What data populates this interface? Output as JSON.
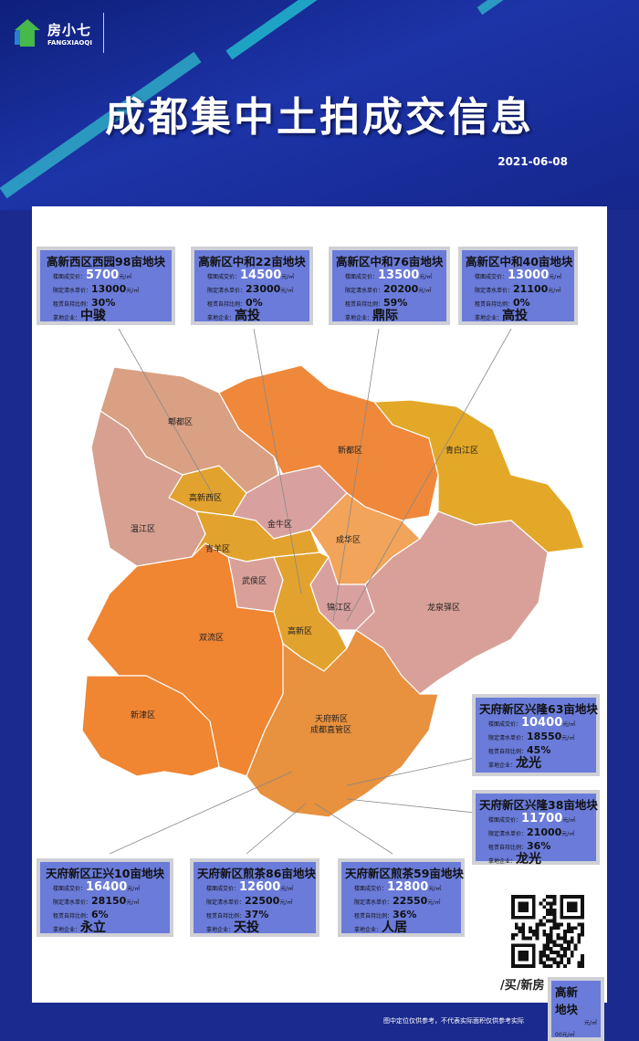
{
  "logo": {
    "name_cn": "房小七",
    "name_en": "FANGXIAOQI"
  },
  "title": "成都集中土拍成交信息",
  "date": "2021-06-08",
  "field_labels": {
    "price": "楼面成交价：",
    "limit": "限定清水单价：",
    "ratio": "租赁自持比例：",
    "company": "拿地企业："
  },
  "unit": "元/㎡",
  "parcels": [
    {
      "name": "高新西区西园98亩地块",
      "price": "5700",
      "limit": "13000",
      "ratio": "30%",
      "company": "中骏"
    },
    {
      "name": "高新区中和22亩地块",
      "price": "14500",
      "limit": "23000",
      "ratio": "0%",
      "company": "高投"
    },
    {
      "name": "高新区中和76亩地块",
      "price": "13500",
      "limit": "20200",
      "ratio": "59%",
      "company": "鼎际"
    },
    {
      "name": "高新区中和40亩地块",
      "price": "13000",
      "limit": "21100",
      "ratio": "0%",
      "company": "高投"
    },
    {
      "name": "天府新区兴隆63亩地块",
      "price": "10400",
      "limit": "18550",
      "ratio": "45%",
      "company": "龙光"
    },
    {
      "name": "天府新区兴隆38亩地块",
      "price": "11700",
      "limit": "21000",
      "ratio": "36%",
      "company": "龙光"
    },
    {
      "name": "天府新区正兴10亩地块",
      "price": "16400",
      "limit": "28150",
      "ratio": "6%",
      "company": "永立"
    },
    {
      "name": "天府新区煎茶86亩地块",
      "price": "12600",
      "limit": "22500",
      "ratio": "37%",
      "company": "天投"
    },
    {
      "name": "天府新区煎茶59亩地块",
      "price": "12800",
      "limit": "22550",
      "ratio": "36%",
      "company": "人居"
    }
  ],
  "partial_box": {
    "title": "高新",
    "title2": "地块",
    "l1": "元/㎡",
    "l2": "00元/㎡"
  },
  "districts": {
    "pidu": "郫都区",
    "xindu": "新都区",
    "qingbaijiang": "青白江区",
    "gaoxinxi": "高新西区",
    "wenjiang": "温江区",
    "jinniu": "金牛区",
    "chenghua": "成华区",
    "qingyang": "青羊区",
    "wuhou": "武侯区",
    "jinjiang": "锦江区",
    "gaoxin": "高新区",
    "longquanyi": "龙泉驿区",
    "shuangliu": "双流区",
    "xinjin": "新津区",
    "tianfu": "天府新区",
    "tianfu2": "成都直管区"
  },
  "qr_caption": "/买/新房",
  "footer": "图中定位仅供参考，不代表实际面积仅供参考实际"
}
